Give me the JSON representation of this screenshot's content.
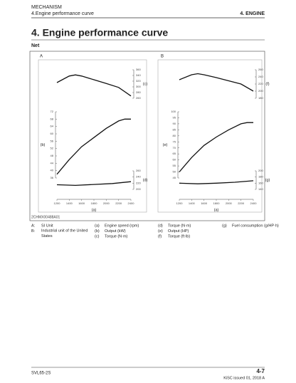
{
  "header": {
    "section": "MECHANISM",
    "subsection": "4.Engine performance curve",
    "chapter": "4. ENGINE"
  },
  "title": "4. Engine performance curve",
  "subtitle": "Net",
  "figure": {
    "code": "2CHMX00488A01",
    "panels": [
      {
        "label": "A",
        "x_label": "(a)",
        "xlim": [
          1200,
          2400
        ],
        "xticks": [
          1200,
          1400,
          1600,
          1800,
          2000,
          2200,
          2400
        ],
        "plots": [
          {
            "label": "(c)",
            "axis_side": "right",
            "ylim": [
              260,
              360
            ],
            "yticks": [
              260,
              280,
              300,
              320,
              340,
              360
            ],
            "x": [
              1200,
              1400,
              1500,
              1600,
              1800,
              2000,
              2200,
              2400
            ],
            "values": [
              315,
              338,
              342,
              338,
              325,
              312,
              298,
              268
            ]
          },
          {
            "label": "(b)",
            "axis_side": "left",
            "ylim": [
              36,
              72
            ],
            "yticks": [
              36,
              40,
              44,
              48,
              52,
              56,
              60,
              64,
              68,
              72
            ],
            "x": [
              1200,
              1400,
              1600,
              1800,
              2000,
              2200,
              2300,
              2400
            ],
            "values": [
              38,
              46,
              53,
              58,
              63,
              67,
              68,
              68
            ]
          },
          {
            "label": "(d)",
            "axis_side": "right",
            "ylim": [
              200,
              260
            ],
            "yticks": [
              200,
              220,
              240,
              260
            ],
            "x": [
              1200,
              1500,
              1800,
              2100,
              2400
            ],
            "values": [
              215,
              213,
              216,
              219,
              225
            ]
          }
        ]
      },
      {
        "label": "B",
        "x_label": "(a)",
        "xlim": [
          1200,
          2400
        ],
        "xticks": [
          1200,
          1400,
          1600,
          1800,
          2000,
          2200,
          2400
        ],
        "plots": [
          {
            "label": "(f)",
            "axis_side": "right",
            "ylim": [
              180,
              260
            ],
            "yticks": [
              180,
              200,
              220,
              240,
              260
            ],
            "x": [
              1200,
              1400,
              1500,
              1600,
              1800,
              2000,
              2200,
              2400
            ],
            "values": [
              232,
              246,
              249,
              246,
              238,
              229,
              220,
              200
            ]
          },
          {
            "label": "(e)",
            "axis_side": "left",
            "ylim": [
              45,
              100
            ],
            "yticks": [
              45,
              50,
              55,
              60,
              65,
              70,
              75,
              80,
              85,
              90,
              95,
              100
            ],
            "x": [
              1200,
              1400,
              1600,
              1800,
              2000,
              2200,
              2300,
              2400
            ],
            "values": [
              50,
              62,
              72,
              79,
              85,
              90,
              91,
              91
            ]
          },
          {
            "label": "(g)",
            "axis_side": "right",
            "ylim": [
              140,
              200
            ],
            "yticks": [
              140,
              160,
              180,
              200
            ],
            "x": [
              1200,
              1500,
              1800,
              2100,
              2400
            ],
            "values": [
              160,
              158,
              160,
              163,
              168
            ]
          }
        ]
      }
    ]
  },
  "legend": [
    [
      {
        "key": "A:",
        "text": "SI Unit"
      },
      {
        "key": "B:",
        "text": "Industrial unit of the United States"
      }
    ],
    [
      {
        "key": "(a)",
        "text": "Engine speed (rpm)"
      },
      {
        "key": "(b)",
        "text": "Output (kW)"
      },
      {
        "key": "(c)",
        "text": "Torque (N·m)"
      }
    ],
    [
      {
        "key": "(d)",
        "text": "Torque (N·m)"
      },
      {
        "key": "(e)",
        "text": "Output (HP)"
      },
      {
        "key": "(f)",
        "text": "Torque (ft·lb)"
      }
    ],
    [
      {
        "key": "(g)",
        "text": "Fuel consumption (g/HP·h)"
      }
    ]
  ],
  "footer": {
    "model": "SVL65-2S",
    "page": "4-7",
    "issued": "KiSC issued 01, 2018 A"
  }
}
